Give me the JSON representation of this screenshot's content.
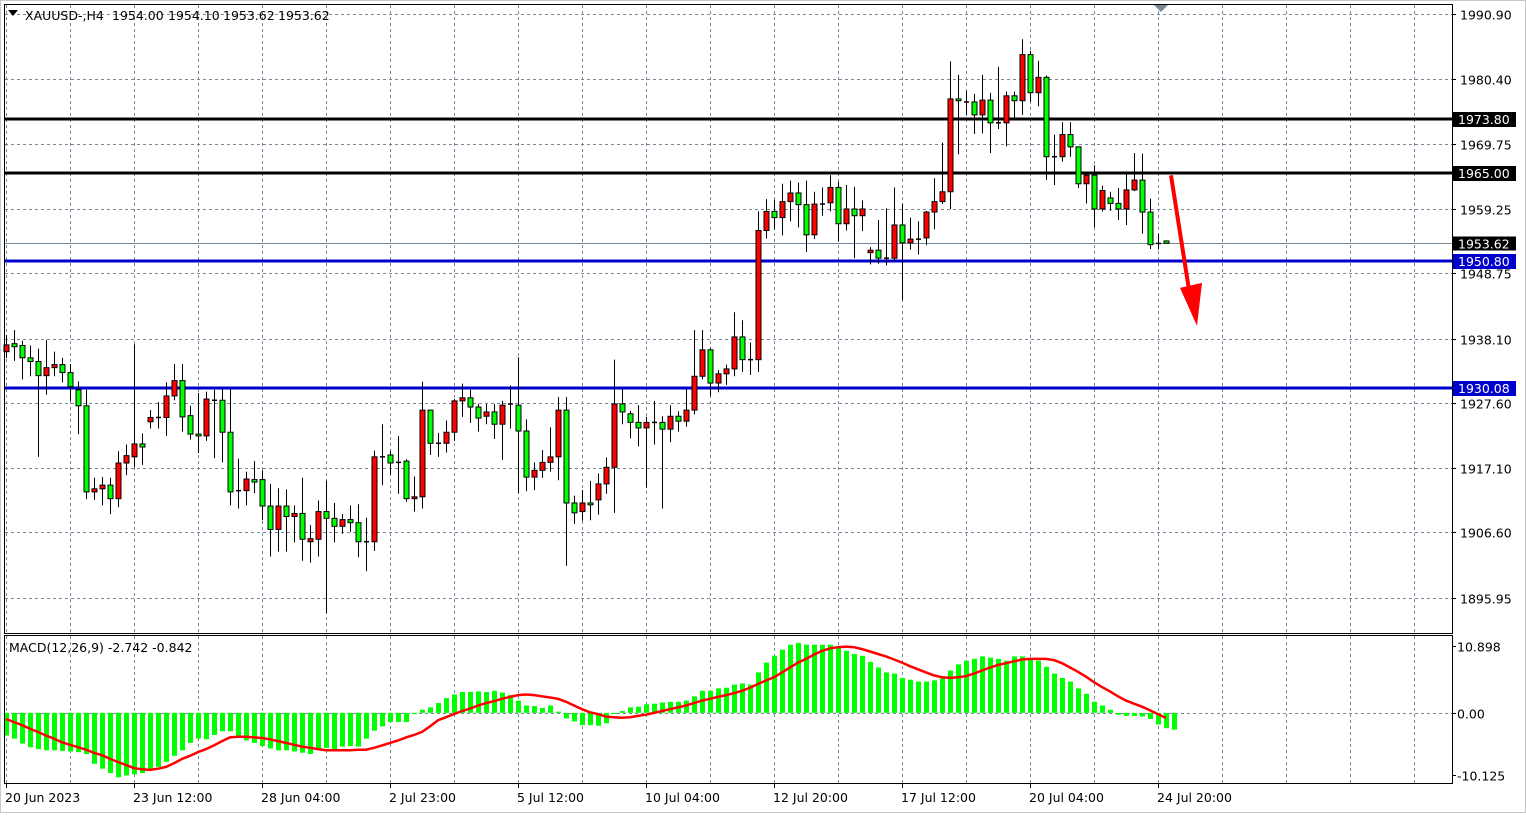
{
  "header": {
    "symbol_timeframe": "XAUUSD-,H4",
    "open": "1954.00",
    "high": "1954.10",
    "low": "1953.62",
    "close": "1953.62",
    "menu_icon": "triangle-down-icon"
  },
  "colors": {
    "bull_candle": "#ff0000",
    "bear_candle": "#00ff00",
    "outline": "#000000",
    "grid": "#778899",
    "resistance_line": "#000000",
    "support_line": "#0000cc",
    "bid_line": "#778899",
    "macd_histogram": "#00ff00",
    "macd_signal": "#ff0000",
    "arrow": "#ff0000",
    "shift_marker": "#778899"
  },
  "price_axis": {
    "labels": [
      "1990.90",
      "1980.40",
      "1969.75",
      "1959.25",
      "1948.75",
      "1938.10",
      "1927.60",
      "1917.10",
      "1906.60",
      "1895.95"
    ],
    "ylim": [
      1895.95,
      1990.9
    ]
  },
  "levels": [
    {
      "value": 1973.8,
      "label": "1973.80",
      "kind": "resistance"
    },
    {
      "value": 1965.0,
      "label": "1965.00",
      "kind": "resistance"
    },
    {
      "value": 1950.8,
      "label": "1950.80",
      "kind": "support"
    },
    {
      "value": 1930.08,
      "label": "1930.08",
      "kind": "support"
    }
  ],
  "bid": {
    "value": 1953.62,
    "label": "1953.62"
  },
  "annotation": {
    "icon": "down-arrow-icon",
    "from_price": 1965.0,
    "to_price": 1940.2
  },
  "time_axis": {
    "labels": [
      "20 Jun 2023",
      "23 Jun 12:00",
      "28 Jun 04:00",
      "2 Jul 23:00",
      "5 Jul 12:00",
      "10 Jul 04:00",
      "12 Jul 20:00",
      "17 Jul 12:00",
      "20 Jul 04:00",
      "24 Jul 20:00"
    ],
    "label_every_bars": 16
  },
  "macd": {
    "title": "MACD(12,26,9) -2.742 -0.842",
    "axis_labels": [
      "10.898",
      "0.00",
      "-10.125"
    ],
    "ylim": [
      -10.125,
      10.898
    ]
  },
  "chart_data": [
    {
      "type": "candlestick",
      "symbol": "XAUUSD-",
      "timeframe": "H4",
      "ylim": [
        1895.95,
        1990.9
      ],
      "grid": true,
      "ohlc": [
        [
          1936.0,
          1938.7,
          1935.0,
          1937.1
        ],
        [
          1937.3,
          1939.5,
          1934.5,
          1936.8
        ],
        [
          1937.0,
          1937.8,
          1931.5,
          1935.0
        ],
        [
          1935.0,
          1937.0,
          1932.0,
          1934.4
        ],
        [
          1934.4,
          1936.5,
          1918.9,
          1932.1
        ],
        [
          1932.1,
          1937.9,
          1929.0,
          1933.4
        ],
        [
          1933.4,
          1936.0,
          1932.0,
          1933.9
        ],
        [
          1933.9,
          1935.0,
          1931.0,
          1932.6
        ],
        [
          1932.6,
          1934.0,
          1928.0,
          1930.3
        ],
        [
          1929.8,
          1931.2,
          1922.6,
          1927.2
        ],
        [
          1927.2,
          1929.8,
          1912.0,
          1913.2
        ],
        [
          1913.2,
          1915.5,
          1911.9,
          1913.7
        ],
        [
          1913.7,
          1915.6,
          1911.0,
          1914.3
        ],
        [
          1914.3,
          1915.5,
          1909.6,
          1912.1
        ],
        [
          1912.1,
          1919.8,
          1910.7,
          1917.9
        ],
        [
          1917.9,
          1920.9,
          1915.9,
          1919.1
        ],
        [
          1918.9,
          1937.2,
          1917.2,
          1921.0
        ],
        [
          1921.0,
          1922.7,
          1917.6,
          1920.5
        ],
        [
          1924.6,
          1926.5,
          1923.5,
          1925.3
        ],
        [
          1925.3,
          1927.8,
          1923.5,
          1925.3
        ],
        [
          1925.3,
          1931.0,
          1922.3,
          1928.8
        ],
        [
          1928.8,
          1934.0,
          1928.1,
          1931.3
        ],
        [
          1931.3,
          1934.0,
          1923.0,
          1925.4
        ],
        [
          1925.6,
          1927.2,
          1921.7,
          1922.6
        ],
        [
          1922.6,
          1929.3,
          1919.5,
          1922.3
        ],
        [
          1922.3,
          1929.5,
          1921.5,
          1928.3
        ],
        [
          1928.1,
          1929.8,
          1918.7,
          1928.1
        ],
        [
          1928.1,
          1930.0,
          1918.0,
          1922.9
        ],
        [
          1922.9,
          1929.9,
          1911.0,
          1913.2
        ],
        [
          1913.4,
          1918.6,
          1910.5,
          1913.4
        ],
        [
          1913.4,
          1916.5,
          1911.0,
          1915.3
        ],
        [
          1915.2,
          1918.2,
          1913.0,
          1914.8
        ],
        [
          1915.2,
          1916.7,
          1908.6,
          1910.9
        ],
        [
          1910.9,
          1914.5,
          1902.7,
          1907.1
        ],
        [
          1907.1,
          1913.8,
          1903.5,
          1910.9
        ],
        [
          1910.9,
          1913.6,
          1903.5,
          1909.2
        ],
        [
          1909.2,
          1911.0,
          1905.0,
          1909.7
        ],
        [
          1909.7,
          1915.5,
          1902.0,
          1905.5
        ],
        [
          1905.1,
          1907.8,
          1901.7,
          1905.6
        ],
        [
          1905.5,
          1911.8,
          1902.7,
          1910.0
        ],
        [
          1910.0,
          1915.0,
          1893.5,
          1908.9
        ],
        [
          1908.9,
          1911.4,
          1905.0,
          1907.6
        ],
        [
          1907.6,
          1909.6,
          1906.4,
          1908.7
        ],
        [
          1908.7,
          1911.0,
          1906.7,
          1908.2
        ],
        [
          1908.2,
          1911.2,
          1902.6,
          1905.1
        ],
        [
          1905.1,
          1909.0,
          1900.3,
          1905.1
        ],
        [
          1905.1,
          1919.9,
          1903.6,
          1918.9
        ],
        [
          1918.9,
          1924.2,
          1914.3,
          1918.9
        ],
        [
          1919.2,
          1919.9,
          1916.0,
          1917.9
        ],
        [
          1918.0,
          1922.3,
          1912.9,
          1918.0
        ],
        [
          1918.2,
          1918.5,
          1911.6,
          1912.1
        ],
        [
          1912.1,
          1915.7,
          1910.0,
          1912.4
        ],
        [
          1912.4,
          1931.1,
          1910.5,
          1926.5
        ],
        [
          1926.5,
          1926.5,
          1919.2,
          1921.1
        ],
        [
          1921.1,
          1922.8,
          1918.9,
          1921.1
        ],
        [
          1921.1,
          1924.8,
          1919.6,
          1922.9
        ],
        [
          1922.9,
          1928.3,
          1921.5,
          1928.0
        ],
        [
          1928.0,
          1930.8,
          1925.4,
          1928.5
        ],
        [
          1928.5,
          1929.8,
          1924.4,
          1927.0
        ],
        [
          1927.0,
          1927.5,
          1923.0,
          1925.2
        ],
        [
          1925.5,
          1927.5,
          1924.2,
          1926.2
        ],
        [
          1926.2,
          1927.5,
          1921.8,
          1924.2
        ],
        [
          1924.2,
          1928.0,
          1918.4,
          1927.3
        ],
        [
          1927.5,
          1930.5,
          1923.5,
          1927.5
        ],
        [
          1927.3,
          1935.1,
          1913.0,
          1923.1
        ],
        [
          1923.1,
          1925.0,
          1913.3,
          1915.6
        ],
        [
          1915.6,
          1918.0,
          1913.5,
          1916.7
        ],
        [
          1916.7,
          1920.0,
          1915.5,
          1918.0
        ],
        [
          1918.0,
          1923.7,
          1916.5,
          1918.9
        ],
        [
          1918.9,
          1928.6,
          1915.1,
          1926.5
        ],
        [
          1926.5,
          1928.6,
          1901.2,
          1911.4
        ],
        [
          1911.4,
          1912.6,
          1908.0,
          1909.8
        ],
        [
          1910.0,
          1913.5,
          1908.5,
          1911.4
        ],
        [
          1911.4,
          1915.0,
          1908.6,
          1911.1
        ],
        [
          1911.9,
          1916.2,
          1909.5,
          1914.5
        ],
        [
          1914.5,
          1918.8,
          1912.9,
          1917.2
        ],
        [
          1917.2,
          1934.7,
          1909.8,
          1927.5
        ],
        [
          1927.5,
          1929.9,
          1924.2,
          1926.2
        ],
        [
          1925.9,
          1926.4,
          1921.9,
          1924.5
        ],
        [
          1924.5,
          1927.3,
          1920.6,
          1923.6
        ],
        [
          1923.6,
          1925.4,
          1913.9,
          1924.5
        ],
        [
          1924.5,
          1928.0,
          1920.9,
          1924.5
        ],
        [
          1924.5,
          1925.5,
          1910.5,
          1923.4
        ],
        [
          1923.4,
          1927.3,
          1921.3,
          1925.5
        ],
        [
          1925.5,
          1926.3,
          1923.0,
          1924.7
        ],
        [
          1924.7,
          1930.0,
          1923.8,
          1926.5
        ],
        [
          1926.5,
          1939.5,
          1925.8,
          1932.0
        ],
        [
          1932.0,
          1939.5,
          1931.5,
          1936.3
        ],
        [
          1936.3,
          1936.6,
          1928.8,
          1930.9
        ],
        [
          1930.9,
          1933.0,
          1929.4,
          1932.4
        ],
        [
          1932.4,
          1933.9,
          1930.6,
          1933.2
        ],
        [
          1933.2,
          1942.4,
          1932.0,
          1938.4
        ],
        [
          1938.4,
          1941.1,
          1932.7,
          1934.7
        ],
        [
          1934.7,
          1937.5,
          1932.2,
          1934.7
        ],
        [
          1934.7,
          1958.8,
          1932.7,
          1955.7
        ],
        [
          1955.7,
          1960.8,
          1954.4,
          1958.8
        ],
        [
          1958.8,
          1960.7,
          1955.9,
          1957.8
        ],
        [
          1957.8,
          1963.3,
          1954.9,
          1960.4
        ],
        [
          1960.4,
          1963.8,
          1957.2,
          1961.8
        ],
        [
          1961.8,
          1963.5,
          1956.2,
          1959.9
        ],
        [
          1959.9,
          1963.8,
          1952.2,
          1955.0
        ],
        [
          1955.0,
          1962.0,
          1954.3,
          1960.0
        ],
        [
          1960.0,
          1962.7,
          1958.1,
          1960.0
        ],
        [
          1960.2,
          1964.7,
          1958.8,
          1962.7
        ],
        [
          1962.7,
          1963.6,
          1953.9,
          1956.8
        ],
        [
          1956.8,
          1963.1,
          1955.7,
          1959.2
        ],
        [
          1959.2,
          1962.8,
          1951.2,
          1958.1
        ],
        [
          1958.1,
          1960.6,
          1955.6,
          1959.2
        ],
        [
          1952.1,
          1953.0,
          1950.2,
          1952.5
        ],
        [
          1952.5,
          1957.4,
          1950.3,
          1951.2
        ],
        [
          1951.2,
          1959.3,
          1950.0,
          1951.2
        ],
        [
          1951.2,
          1962.7,
          1950.7,
          1956.6
        ],
        [
          1956.6,
          1960.0,
          1944.4,
          1953.7
        ],
        [
          1953.7,
          1957.8,
          1952.6,
          1954.3
        ],
        [
          1954.3,
          1957.2,
          1951.8,
          1954.3
        ],
        [
          1954.5,
          1958.9,
          1953.3,
          1958.7
        ],
        [
          1958.7,
          1964.2,
          1955.9,
          1960.4
        ],
        [
          1960.4,
          1970.0,
          1960.0,
          1962.0
        ],
        [
          1962.0,
          1983.2,
          1959.2,
          1977.1
        ],
        [
          1977.1,
          1981.0,
          1968.1,
          1976.8
        ],
        [
          1976.6,
          1978.4,
          1974.5,
          1976.6
        ],
        [
          1976.6,
          1977.9,
          1971.4,
          1974.5
        ],
        [
          1974.5,
          1981.0,
          1971.5,
          1976.9
        ],
        [
          1976.9,
          1978.1,
          1968.3,
          1973.2
        ],
        [
          1973.2,
          1982.3,
          1972.2,
          1973.2
        ],
        [
          1973.2,
          1978.3,
          1969.4,
          1977.6
        ],
        [
          1977.6,
          1978.3,
          1973.8,
          1976.8
        ],
        [
          1976.8,
          1986.8,
          1974.5,
          1984.3
        ],
        [
          1984.3,
          1984.9,
          1976.6,
          1978.1
        ],
        [
          1978.1,
          1983.3,
          1975.9,
          1980.6
        ],
        [
          1980.6,
          1980.9,
          1963.9,
          1967.7
        ],
        [
          1967.7,
          1971.3,
          1963.1,
          1967.7
        ],
        [
          1967.7,
          1973.3,
          1966.9,
          1971.3
        ],
        [
          1971.3,
          1973.3,
          1967.7,
          1969.3
        ],
        [
          1969.3,
          1969.3,
          1962.6,
          1963.3
        ],
        [
          1963.3,
          1965.1,
          1960.1,
          1964.7
        ],
        [
          1964.7,
          1966.3,
          1956.2,
          1959.2
        ],
        [
          1959.2,
          1963.0,
          1958.8,
          1962.2
        ],
        [
          1961.0,
          1962.0,
          1958.9,
          1960.1
        ],
        [
          1960.1,
          1962.6,
          1957.4,
          1959.2
        ],
        [
          1959.2,
          1965.1,
          1956.6,
          1962.3
        ],
        [
          1962.3,
          1968.3,
          1962.1,
          1963.9
        ],
        [
          1963.9,
          1968.2,
          1955.2,
          1958.7
        ],
        [
          1958.7,
          1960.9,
          1952.7,
          1953.4
        ],
        [
          1953.6,
          1955.2,
          1952.6,
          1953.6
        ],
        [
          1954.0,
          1954.1,
          1953.62,
          1953.62
        ]
      ]
    },
    {
      "type": "bar+line",
      "indicator": "MACD(12,26,9)",
      "ylim": [
        -10.125,
        10.898
      ],
      "grid": true,
      "histogram": [
        -3.7,
        -4.2,
        -5.0,
        -5.6,
        -5.9,
        -6.1,
        -6.1,
        -6.2,
        -6.3,
        -6.4,
        -6.7,
        -8.3,
        -9.1,
        -9.8,
        -10.5,
        -10.2,
        -10.0,
        -9.8,
        -9.1,
        -8.8,
        -8.0,
        -7.0,
        -6.1,
        -4.9,
        -4.2,
        -4.3,
        -3.6,
        -3.0,
        -3.0,
        -4.0,
        -4.5,
        -4.9,
        -5.4,
        -5.8,
        -6.1,
        -6.1,
        -6.3,
        -6.5,
        -6.7,
        -6.0,
        -5.7,
        -6.0,
        -5.5,
        -5.4,
        -5.5,
        -4.2,
        -2.9,
        -2.2,
        -1.5,
        -1.5,
        -1.5,
        -0.2,
        0.5,
        0.9,
        1.6,
        2.4,
        3.0,
        3.4,
        3.4,
        3.5,
        3.4,
        3.6,
        3.3,
        2.9,
        2.0,
        1.2,
        1.1,
        0.8,
        1.2,
        0.2,
        -0.9,
        -1.4,
        -2.0,
        -2.0,
        -2.1,
        -1.7,
        -0.2,
        0.3,
        0.9,
        1.0,
        1.4,
        1.5,
        1.7,
        1.8,
        1.8,
        2.0,
        2.7,
        3.6,
        3.6,
        4.0,
        4.1,
        4.6,
        4.8,
        4.6,
        6.6,
        8.2,
        9.3,
        10.3,
        11.1,
        11.4,
        11.1,
        11.1,
        11.1,
        11.1,
        10.6,
        10.1,
        9.6,
        9.3,
        8.3,
        7.4,
        6.6,
        6.4,
        5.7,
        5.4,
        5.1,
        5.1,
        5.3,
        5.6,
        6.9,
        7.9,
        8.5,
        8.8,
        9.2,
        9.0,
        8.8,
        8.5,
        9.2,
        9.2,
        8.8,
        8.5,
        7.5,
        6.4,
        5.7,
        5.1,
        4.0,
        3.1,
        1.8,
        1.2,
        0.5,
        -0.3,
        -0.5,
        -0.5,
        -0.6,
        -1.0,
        -1.9,
        -2.5,
        -2.742
      ],
      "signal": [
        -1.0,
        -1.5,
        -2.0,
        -2.6,
        -3.1,
        -3.7,
        -4.2,
        -4.8,
        -5.2,
        -5.6,
        -6.0,
        -6.5,
        -6.9,
        -7.5,
        -8.0,
        -8.5,
        -9.0,
        -9.2,
        -9.3,
        -9.1,
        -8.8,
        -8.2,
        -7.5,
        -7.0,
        -6.4,
        -5.9,
        -5.3,
        -4.6,
        -4.0,
        -3.9,
        -3.9,
        -4.0,
        -4.1,
        -4.3,
        -4.6,
        -4.9,
        -5.2,
        -5.5,
        -5.7,
        -5.9,
        -6.1,
        -6.1,
        -6.1,
        -6.1,
        -6.0,
        -6.0,
        -5.7,
        -5.3,
        -4.9,
        -4.5,
        -4.0,
        -3.6,
        -3.1,
        -2.2,
        -1.2,
        -0.7,
        -0.2,
        0.3,
        0.7,
        1.2,
        1.6,
        1.9,
        2.3,
        2.6,
        2.9,
        3.0,
        2.9,
        2.7,
        2.5,
        2.3,
        1.8,
        1.2,
        0.6,
        0.1,
        -0.2,
        -0.6,
        -0.7,
        -0.8,
        -0.7,
        -0.5,
        -0.3,
        0.0,
        0.3,
        0.6,
        0.9,
        1.2,
        1.6,
        2.0,
        2.3,
        2.6,
        2.9,
        3.2,
        3.6,
        4.1,
        4.7,
        5.3,
        5.8,
        6.6,
        7.4,
        8.2,
        8.8,
        9.5,
        10.1,
        10.5,
        10.7,
        10.8,
        10.7,
        10.4,
        10.0,
        9.6,
        9.2,
        8.7,
        8.2,
        7.6,
        7.1,
        6.6,
        6.1,
        5.8,
        5.7,
        5.8,
        6.0,
        6.4,
        6.9,
        7.4,
        7.8,
        8.1,
        8.4,
        8.7,
        8.8,
        8.8,
        8.8,
        8.6,
        8.1,
        7.4,
        6.7,
        5.9,
        5.0,
        4.2,
        3.5,
        2.7,
        2.0,
        1.5,
        1.0,
        0.4,
        -0.2,
        -0.842
      ]
    }
  ]
}
